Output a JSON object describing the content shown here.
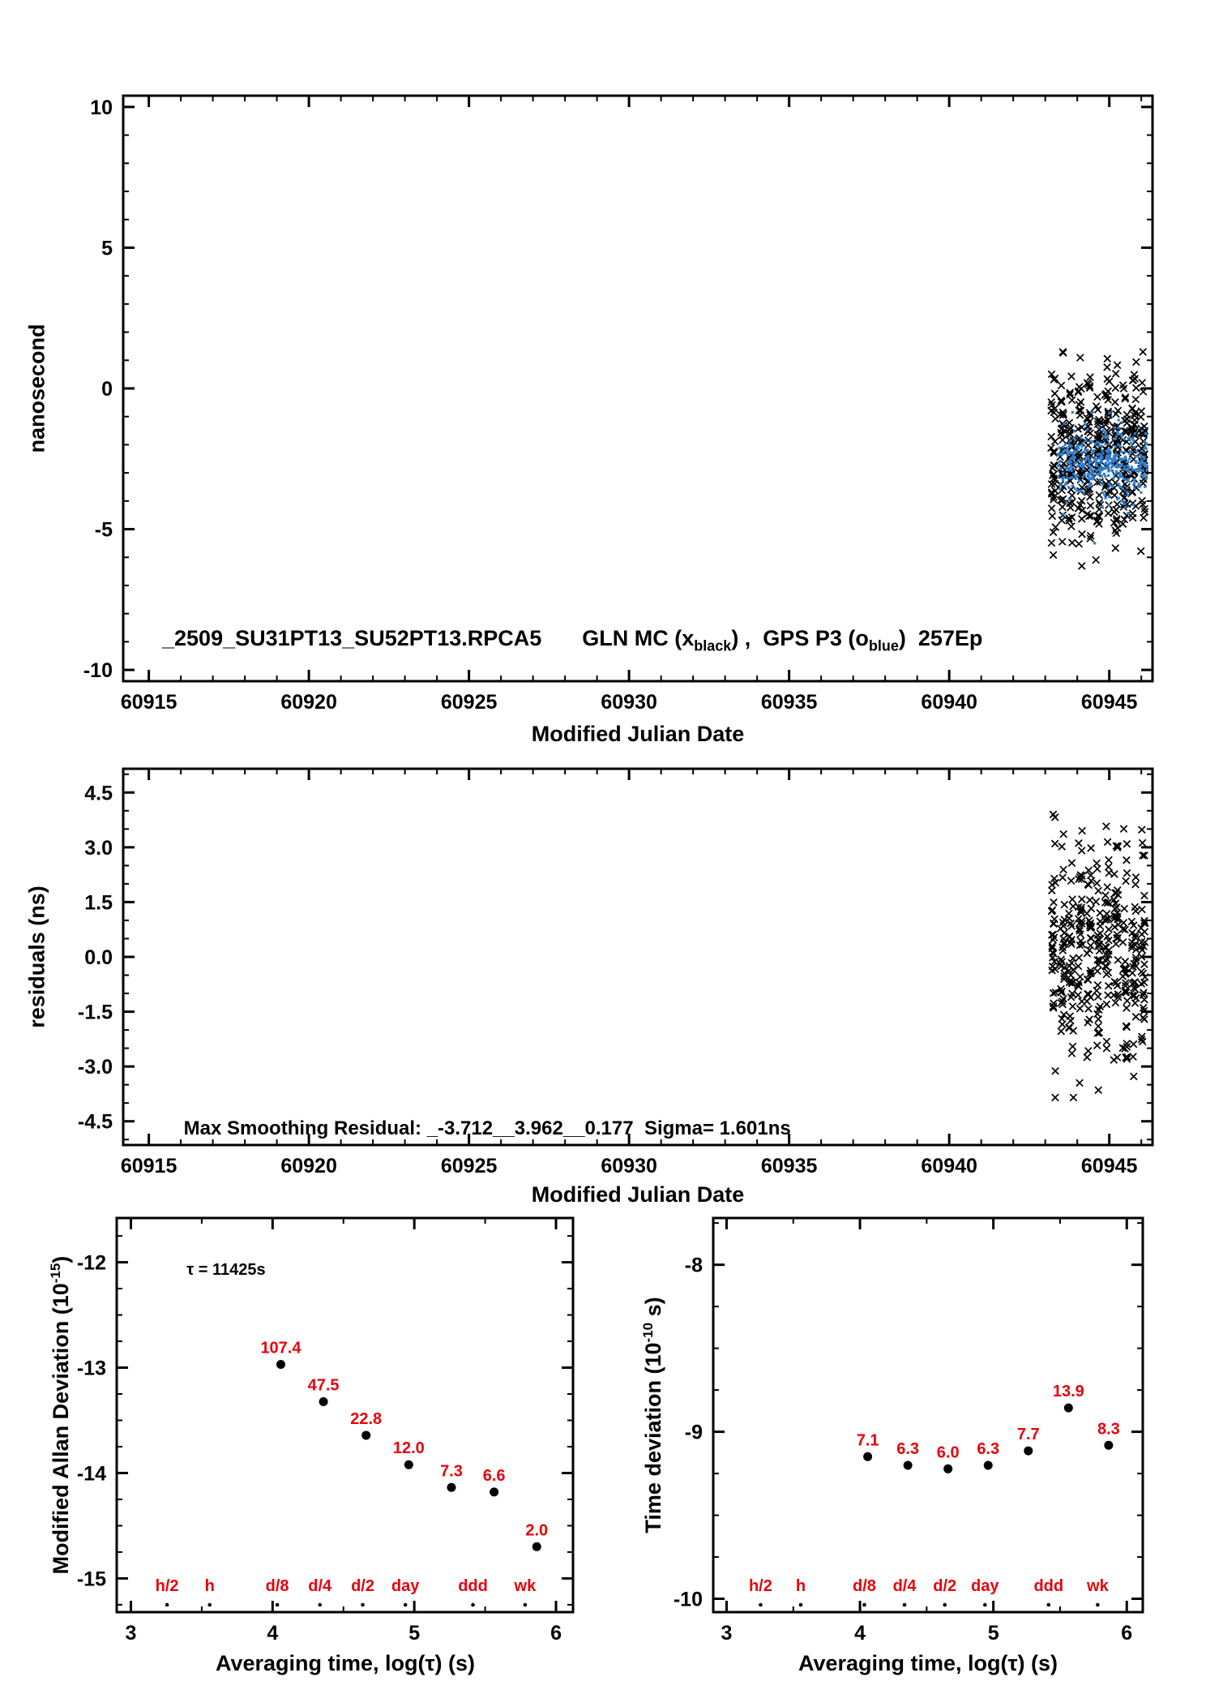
{
  "figure": {
    "background": "#ffffff",
    "accent_red": "#e8000b",
    "marker_blue": "#2e7fd0",
    "marker_black": "#000000"
  },
  "labels": {
    "p1_ylabel": "nanosecond",
    "p1_xlabel": "Modified Julian Date",
    "p1_title_file": "_2509_SU31PT13_SU52PT13.RPCA5",
    "p1_title_seg1": "GLN MC (x",
    "p1_title_sub1": "black",
    "p1_title_seg2": ") ,  GPS P3 (o",
    "p1_title_sub2": "blue",
    "p1_title_seg3": ")  257Ep",
    "p2_ylabel": "residuals (ns)",
    "p2_xlabel": "Modified Julian Date",
    "p2_annotation": "Max Smoothing Residual: _-3.712__3.962__0.177  Sigma= 1.601ns",
    "p3_ylabel_pre": "Modified Allan Deviation (10",
    "p3_ylabel_sup": "-15",
    "p3_ylabel_post": ")",
    "p3_tau_note": "τ = 11425s",
    "p34_xlabel": "Averaging time, log(τ) (s)",
    "p4_ylabel_pre": "Time deviation (10",
    "p4_ylabel_sup": "-10",
    "p4_ylabel_post": " s)"
  },
  "chart_data": [
    {
      "id": "phase",
      "type": "scatter",
      "title": "_2509_SU31PT13_SU52PT13.RPCA5  GLN MC (x black) , GPS P3 (o blue) 257Ep",
      "xlabel": "Modified Julian Date",
      "ylabel": "nanosecond",
      "grid": false,
      "xlim": [
        60914.2,
        60946.35
      ],
      "ylim": [
        -10.4,
        10.4
      ],
      "xticks": [
        60915,
        60920,
        60925,
        60930,
        60935,
        60940,
        60945
      ],
      "xtick_labels": [
        "60915",
        "60920",
        "60925",
        "60930",
        "60935",
        "60940",
        "60945"
      ],
      "x_minor": 1,
      "yticks": [
        -10,
        -5,
        0,
        5,
        10
      ],
      "ytick_labels": [
        "-10",
        "-5",
        "0",
        "5",
        "10"
      ],
      "y_minor": 1,
      "series": [
        {
          "name": "GLN MC",
          "marker": "x",
          "color": "#000000",
          "cluster": {
            "x_start": 60943.25,
            "band_step": 0.28,
            "bands": 11,
            "band_width": 0.14,
            "points_per_band": 38,
            "y_mean": -2.3,
            "y_sd": 1.55,
            "y_clip": [
              -7.3,
              1.3
            ],
            "seed": 101
          }
        },
        {
          "name": "GPS P3",
          "marker": "dot",
          "color": "#2e7fd0",
          "cluster": {
            "x_start": 60943.38,
            "x_end": 60946.18,
            "count": 340,
            "y_mean": -2.65,
            "y_sd": 0.6,
            "y_clip": [
              -5.6,
              -0.85
            ],
            "tail_count": 25,
            "tail_sd": 1.3,
            "seed": 202
          }
        }
      ]
    },
    {
      "id": "residuals",
      "type": "scatter",
      "xlabel": "Modified Julian Date",
      "ylabel": "residuals (ns)",
      "grid": false,
      "annotation": "Max Smoothing Residual: _-3.712__3.962__0.177  Sigma= 1.601ns",
      "stats": {
        "min_ns": -3.712,
        "max_ns": 3.962,
        "mean_ns": 0.177,
        "sigma_ns": 1.601
      },
      "xlim": [
        60914.2,
        60946.35
      ],
      "ylim": [
        -5.15,
        5.15
      ],
      "xticks": [
        60915,
        60920,
        60925,
        60930,
        60935,
        60940,
        60945
      ],
      "xtick_labels": [
        "60915",
        "60920",
        "60925",
        "60930",
        "60935",
        "60940",
        "60945"
      ],
      "x_minor": 1,
      "yticks": [
        -4.5,
        -3.0,
        -1.5,
        0.0,
        1.5,
        3.0,
        4.5
      ],
      "ytick_labels": [
        "-4.5",
        "-3.0",
        "-1.5",
        "0.0",
        "1.5",
        "3.0",
        "4.5"
      ],
      "y_minor": 0.5,
      "series": [
        {
          "name": "smoothing residuals",
          "marker": "x",
          "color": "#000000",
          "cluster": {
            "x_start": 60943.25,
            "band_step": 0.28,
            "bands": 11,
            "band_width": 0.14,
            "points_per_band": 34,
            "y_mean": 0.25,
            "y_sd": 1.55,
            "y_clip": [
              -3.85,
              4.05
            ],
            "seed": 303
          }
        }
      ]
    },
    {
      "id": "mdev",
      "type": "scatter",
      "xlabel": "Averaging time, log(tau) (s)",
      "ylabel": "Modified Allan Deviation (10^-15)",
      "grid": false,
      "annotation": "tau = 11425s",
      "tau0_s": 11425,
      "xlim": [
        2.9,
        6.12
      ],
      "ylim": [
        -15.32,
        -11.58
      ],
      "xticks": [
        3,
        4,
        5,
        6
      ],
      "xtick_labels": [
        "3",
        "4",
        "5",
        "6"
      ],
      "x_minor": 0.5,
      "yticks": [
        -15,
        -14,
        -13,
        -12
      ],
      "ytick_labels": [
        "-15",
        "-14",
        "-13",
        "-12"
      ],
      "y_minor": 0.25,
      "points": [
        {
          "log_tau": 4.058,
          "value": 107.4,
          "label": "107.4",
          "y_log": -12.969
        },
        {
          "log_tau": 4.359,
          "value": 47.5,
          "label": "47.5",
          "y_log": -13.323
        },
        {
          "log_tau": 4.66,
          "value": 22.8,
          "label": "22.8",
          "y_log": -13.642
        },
        {
          "log_tau": 4.961,
          "value": 12.0,
          "label": "12.0",
          "y_log": -13.921
        },
        {
          "log_tau": 5.262,
          "value": 7.3,
          "label": "7.3",
          "y_log": -14.137
        },
        {
          "log_tau": 5.563,
          "value": 6.6,
          "label": "6.6",
          "y_log": -14.18
        },
        {
          "log_tau": 5.864,
          "value": 2.0,
          "label": "2.0",
          "y_log": -14.699
        }
      ],
      "tau_marks": [
        {
          "label": "h/2",
          "log_tau": 3.255
        },
        {
          "label": "h",
          "log_tau": 3.556
        },
        {
          "label": "d/8",
          "log_tau": 4.033
        },
        {
          "label": "d/4",
          "log_tau": 4.334
        },
        {
          "label": "d/2",
          "log_tau": 4.636
        },
        {
          "label": "day",
          "log_tau": 4.937
        },
        {
          "label": "ddd",
          "log_tau": 5.414
        },
        {
          "label": "wk",
          "log_tau": 5.782
        }
      ]
    },
    {
      "id": "tdev",
      "type": "scatter",
      "xlabel": "Averaging time, log(tau) (s)",
      "ylabel": "Time deviation (10^-10 s)",
      "grid": false,
      "xlim": [
        2.9,
        6.12
      ],
      "ylim": [
        -10.08,
        -7.72
      ],
      "xticks": [
        3,
        4,
        5,
        6
      ],
      "xtick_labels": [
        "3",
        "4",
        "5",
        "6"
      ],
      "x_minor": 0.5,
      "yticks": [
        -10,
        -9,
        -8
      ],
      "ytick_labels": [
        "-10",
        "-9",
        "-8"
      ],
      "y_minor": 0.25,
      "points": [
        {
          "log_tau": 4.058,
          "value": 7.1,
          "label": "7.1",
          "y_log": -9.149
        },
        {
          "log_tau": 4.359,
          "value": 6.3,
          "label": "6.3",
          "y_log": -9.201
        },
        {
          "log_tau": 4.66,
          "value": 6.0,
          "label": "6.0",
          "y_log": -9.222
        },
        {
          "log_tau": 4.961,
          "value": 6.3,
          "label": "6.3",
          "y_log": -9.201
        },
        {
          "log_tau": 5.262,
          "value": 7.7,
          "label": "7.7",
          "y_log": -9.114
        },
        {
          "log_tau": 5.563,
          "value": 13.9,
          "label": "13.9",
          "y_log": -8.857
        },
        {
          "log_tau": 5.864,
          "value": 8.3,
          "label": "8.3",
          "y_log": -9.081
        }
      ],
      "tau_marks": [
        {
          "label": "h/2",
          "log_tau": 3.255
        },
        {
          "label": "h",
          "log_tau": 3.556
        },
        {
          "label": "d/8",
          "log_tau": 4.033
        },
        {
          "label": "d/4",
          "log_tau": 4.334
        },
        {
          "label": "d/2",
          "log_tau": 4.636
        },
        {
          "label": "day",
          "log_tau": 4.937
        },
        {
          "label": "ddd",
          "log_tau": 5.414
        },
        {
          "label": "wk",
          "log_tau": 5.782
        }
      ]
    }
  ]
}
